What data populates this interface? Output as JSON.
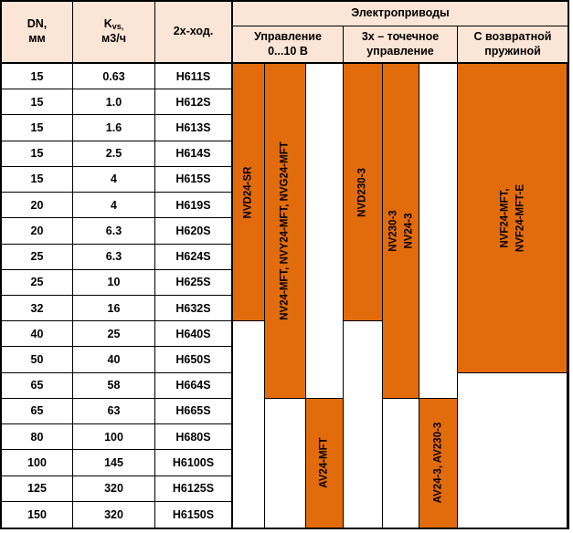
{
  "table": {
    "header": {
      "dn": "DN,\nмм",
      "kvs": {
        "k": "K",
        "sub": "vs,",
        "unit": "м3/ч"
      },
      "two_way": "2х-ход.",
      "actuators": "Электроприводы",
      "control_0_10v": "Управление\n0...10 В",
      "three_point": "3х – точечное\nуправление",
      "spring_return": "С возвратной\nпружиной"
    },
    "rows": [
      {
        "dn": "15",
        "kvs": "0.63",
        "code": "H611S"
      },
      {
        "dn": "15",
        "kvs": "1.0",
        "code": "H612S"
      },
      {
        "dn": "15",
        "kvs": "1.6",
        "code": "H613S"
      },
      {
        "dn": "15",
        "kvs": "2.5",
        "code": "H614S"
      },
      {
        "dn": "15",
        "kvs": "4",
        "code": "H615S"
      },
      {
        "dn": "20",
        "kvs": "4",
        "code": "H619S"
      },
      {
        "dn": "20",
        "kvs": "6.3",
        "code": "H620S"
      },
      {
        "dn": "25",
        "kvs": "6.3",
        "code": "H624S"
      },
      {
        "dn": "25",
        "kvs": "10",
        "code": "H625S"
      },
      {
        "dn": "32",
        "kvs": "16",
        "code": "H632S"
      },
      {
        "dn": "40",
        "kvs": "25",
        "code": "H640S"
      },
      {
        "dn": "50",
        "kvs": "40",
        "code": "H650S"
      },
      {
        "dn": "65",
        "kvs": "58",
        "code": "H664S"
      },
      {
        "dn": "65",
        "kvs": "63",
        "code": "H665S"
      },
      {
        "dn": "80",
        "kvs": "100",
        "code": "H680S"
      },
      {
        "dn": "100",
        "kvs": "145",
        "code": "H6100S"
      },
      {
        "dn": "125",
        "kvs": "320",
        "code": "H6125S"
      },
      {
        "dn": "150",
        "kvs": "320",
        "code": "H6150S"
      }
    ],
    "bars": [
      {
        "name": "bar-nvd24-sr",
        "label": "NVD24-SR",
        "col": 4,
        "row_start": 1,
        "row_end": 10,
        "filled": true
      },
      {
        "name": "bar-nvd24-sr-empty",
        "label": "",
        "col": 4,
        "row_start": 11,
        "row_end": 18,
        "filled": false
      },
      {
        "name": "bar-nv24-mft",
        "label": "NV24-MFT, NVY24-MFT, NVG24-MFT",
        "col": 5,
        "row_start": 1,
        "row_end": 13,
        "filled": true
      },
      {
        "name": "bar-nv24-mft-empty",
        "label": "",
        "col": 5,
        "row_start": 14,
        "row_end": 18,
        "filled": false
      },
      {
        "name": "bar-av24-mft-empty",
        "label": "",
        "col": 6,
        "row_start": 1,
        "row_end": 13,
        "filled": false
      },
      {
        "name": "bar-av24-mft",
        "label": "AV24-MFT",
        "col": 6,
        "row_start": 14,
        "row_end": 18,
        "filled": true
      },
      {
        "name": "bar-nvd230-3",
        "label": "NVD230-3",
        "col": 7,
        "row_start": 1,
        "row_end": 10,
        "filled": true
      },
      {
        "name": "bar-nvd230-3-empty",
        "label": "",
        "col": 7,
        "row_start": 11,
        "row_end": 18,
        "filled": false
      },
      {
        "name": "bar-nv230-3-nv24-3",
        "label": "NV230-3\nNV24-3",
        "col": 8,
        "row_start": 1,
        "row_end": 13,
        "filled": true
      },
      {
        "name": "bar-nv230-3-empty",
        "label": "",
        "col": 8,
        "row_start": 14,
        "row_end": 18,
        "filled": false
      },
      {
        "name": "bar-av24-3-empty",
        "label": "",
        "col": 9,
        "row_start": 1,
        "row_end": 13,
        "filled": false
      },
      {
        "name": "bar-av24-3-av230-3",
        "label": "AV24-3, AV230-3",
        "col": 9,
        "row_start": 14,
        "row_end": 18,
        "filled": true
      },
      {
        "name": "bar-nvf24-mft",
        "label": "NVF24-MFT,\nNVF24-MFT-E",
        "col": 10,
        "row_start": 1,
        "row_end": 12,
        "filled": true
      },
      {
        "name": "bar-nvf24-mft-empty",
        "label": "",
        "col": 10,
        "row_start": 13,
        "row_end": 18,
        "filled": false
      }
    ],
    "colors": {
      "orange": "#E26C0B",
      "header_bg": "#FBE5D6",
      "border": "#000000"
    }
  }
}
